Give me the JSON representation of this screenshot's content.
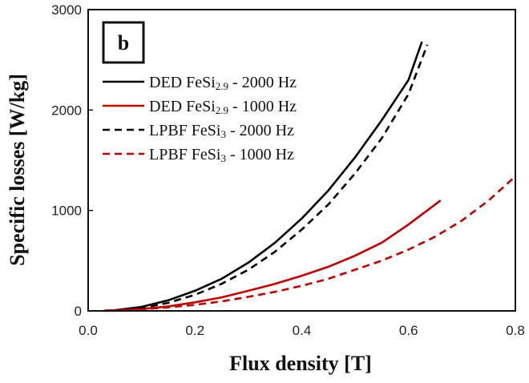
{
  "chart_data": {
    "type": "line",
    "panel_label": "b",
    "xlabel": "Flux density [T]",
    "ylabel": "Specific losses [W/kg]",
    "xlim": [
      0,
      0.8
    ],
    "ylim": [
      0,
      3000
    ],
    "xticks": [
      {
        "value": 0.0,
        "label": "0.0"
      },
      {
        "value": 0.2,
        "label": "0.2"
      },
      {
        "value": 0.4,
        "label": "0.4"
      },
      {
        "value": 0.6,
        "label": "0.6"
      },
      {
        "value": 0.8,
        "label": "0.8"
      }
    ],
    "yticks": [
      {
        "value": 0,
        "label": "0"
      },
      {
        "value": 1000,
        "label": "1000"
      },
      {
        "value": 2000,
        "label": "2000"
      },
      {
        "value": 3000,
        "label": "3000"
      }
    ],
    "grid": false,
    "legend_position": "top-left",
    "series": [
      {
        "name_main": "DED FeSi",
        "name_sub": "2.9",
        "name_tail": " - 2000 Hz",
        "color": "#000000",
        "dash": "solid",
        "points": [
          [
            0.03,
            2
          ],
          [
            0.05,
            6
          ],
          [
            0.1,
            40
          ],
          [
            0.15,
            105
          ],
          [
            0.2,
            200
          ],
          [
            0.25,
            320
          ],
          [
            0.3,
            480
          ],
          [
            0.35,
            680
          ],
          [
            0.4,
            920
          ],
          [
            0.45,
            1200
          ],
          [
            0.5,
            1530
          ],
          [
            0.55,
            1900
          ],
          [
            0.6,
            2300
          ],
          [
            0.625,
            2680
          ]
        ]
      },
      {
        "name_main": "DED FeSi",
        "name_sub": "2.9",
        "name_tail": " - 1000 Hz",
        "color": "#c00000",
        "dash": "solid",
        "points": [
          [
            0.03,
            1
          ],
          [
            0.1,
            18
          ],
          [
            0.15,
            45
          ],
          [
            0.2,
            85
          ],
          [
            0.25,
            135
          ],
          [
            0.3,
            200
          ],
          [
            0.35,
            270
          ],
          [
            0.4,
            350
          ],
          [
            0.45,
            440
          ],
          [
            0.5,
            550
          ],
          [
            0.55,
            680
          ],
          [
            0.6,
            860
          ],
          [
            0.66,
            1100
          ]
        ]
      },
      {
        "name_main": "LPBF FeSi",
        "name_sub": "3",
        "name_tail": " - 2000 Hz",
        "color": "#000000",
        "dash": "dashed",
        "points": [
          [
            0.05,
            4
          ],
          [
            0.1,
            30
          ],
          [
            0.15,
            80
          ],
          [
            0.2,
            160
          ],
          [
            0.25,
            270
          ],
          [
            0.3,
            410
          ],
          [
            0.35,
            590
          ],
          [
            0.4,
            810
          ],
          [
            0.45,
            1060
          ],
          [
            0.5,
            1370
          ],
          [
            0.55,
            1720
          ],
          [
            0.6,
            2160
          ],
          [
            0.635,
            2650
          ]
        ]
      },
      {
        "name_main": "LPBF FeSi",
        "name_sub": "3",
        "name_tail": " - 1000 Hz",
        "color": "#c00000",
        "dash": "dashed",
        "points": [
          [
            0.05,
            2
          ],
          [
            0.1,
            15
          ],
          [
            0.15,
            35
          ],
          [
            0.2,
            60
          ],
          [
            0.25,
            95
          ],
          [
            0.3,
            140
          ],
          [
            0.35,
            190
          ],
          [
            0.4,
            250
          ],
          [
            0.45,
            320
          ],
          [
            0.5,
            410
          ],
          [
            0.55,
            500
          ],
          [
            0.6,
            610
          ],
          [
            0.65,
            740
          ],
          [
            0.7,
            900
          ],
          [
            0.75,
            1100
          ],
          [
            0.8,
            1340
          ]
        ]
      }
    ]
  }
}
